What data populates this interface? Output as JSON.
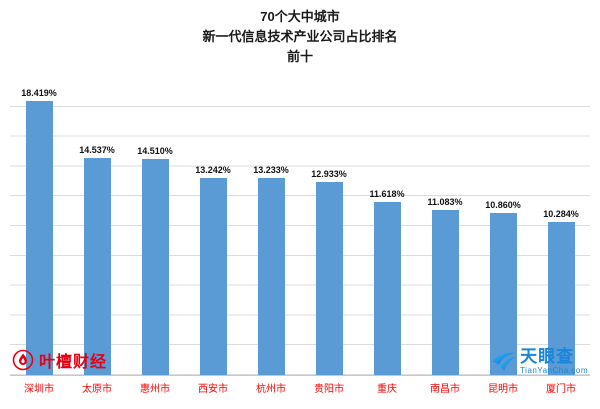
{
  "chart_data": {
    "type": "bar",
    "title_lines": [
      "70个大中城市",
      "新一代信息技术产业公司占比排名",
      "前十"
    ],
    "categories": [
      "深圳市",
      "太原市",
      "惠州市",
      "西安市",
      "杭州市",
      "贵阳市",
      "重庆",
      "南昌市",
      "昆明市",
      "厦门市"
    ],
    "values": [
      18.419,
      14.537,
      14.51,
      13.242,
      13.233,
      12.933,
      11.618,
      11.083,
      10.86,
      10.284
    ],
    "value_labels": [
      "18.419%",
      "14.537%",
      "14.510%",
      "13.242%",
      "13.233%",
      "12.933%",
      "11.618%",
      "11.083%",
      "10.860%",
      "10.284%"
    ],
    "xlabel": "",
    "ylabel": "",
    "ylim": [
      0,
      20
    ],
    "grid": true,
    "legend": "none",
    "bar_color": "#5b9bd5",
    "category_label_color": "#ff0000"
  },
  "footer": {
    "left_brand": "叶檀财经",
    "right_brand": "天眼查",
    "right_sub": "TianYanCha.com"
  }
}
